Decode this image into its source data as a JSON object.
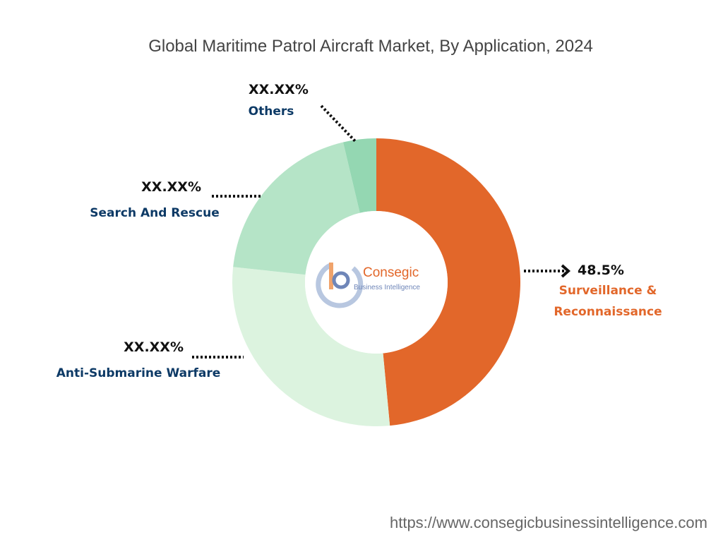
{
  "chart_data": {
    "type": "donut",
    "title": "Global Maritime Patrol Aircraft Market, By Application, 2024",
    "categories": [
      "Surveillance & Reconnaissance",
      "Anti-Submarine Warfare",
      "Search And Rescue",
      "Others"
    ],
    "values": [
      48.5,
      28.2,
      19.6,
      3.7
    ],
    "value_labels": [
      "48.5%",
      "XX.XX%",
      "XX.XX%",
      "XX.XX%"
    ],
    "colors": [
      "#e2672a",
      "#dcf3df",
      "#b5e4c7",
      "#94d7b2"
    ],
    "label_colors": [
      "#e2672a",
      "#0d3a66",
      "#0d3a66",
      "#0d3a66"
    ]
  },
  "logo": {
    "name": "Consegic",
    "tagline": "Business Intelligence"
  },
  "source": "https://www.consegicbusinessintelligence.com"
}
